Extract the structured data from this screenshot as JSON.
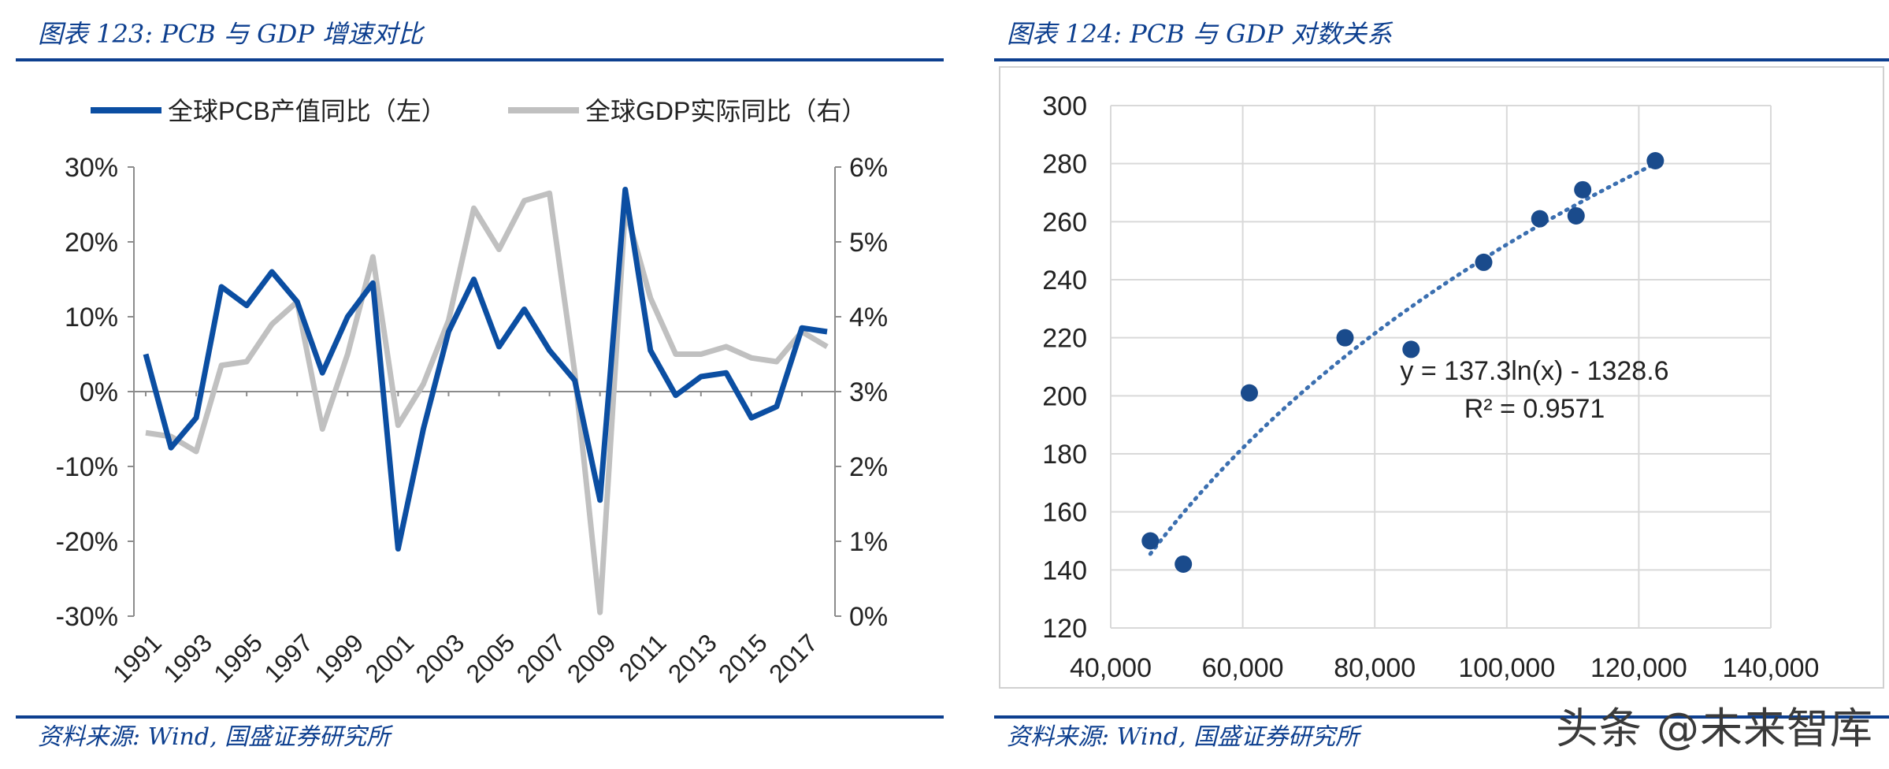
{
  "left": {
    "title": "图表 123:  PCB 与 GDP 增速对比",
    "source": "资料来源:  Wind,  国盛证券研究所"
  },
  "right": {
    "title": "图表 124:  PCB 与 GDP 对数关系",
    "source": "资料来源:  Wind,  国盛证券研究所"
  },
  "watermark": "头条 @未来智库",
  "colors": {
    "brand": "#0d3f8f",
    "pcb": "#0b4ea2",
    "gdp": "#c0c0c0",
    "scatter": "#1a4b8c"
  },
  "chart_data": [
    {
      "type": "line",
      "title": "PCB 与 GDP 增速对比",
      "legend": [
        "全球PCB产值同比（左）",
        "全球GDP实际同比（右）"
      ],
      "legend_position": "top",
      "x": [
        1991,
        1992,
        1993,
        1994,
        1995,
        1996,
        1997,
        1998,
        1999,
        2000,
        2001,
        2002,
        2003,
        2004,
        2005,
        2006,
        2007,
        2008,
        2009,
        2010,
        2011,
        2012,
        2013,
        2014,
        2015,
        2016,
        2017,
        2018
      ],
      "x_tick_labels": [
        "1991",
        "1993",
        "1995",
        "1997",
        "1999",
        "2001",
        "2003",
        "2005",
        "2007",
        "2009",
        "2011",
        "2013",
        "2015",
        "2017"
      ],
      "y_left": {
        "range": [
          -30,
          30
        ],
        "ticks": [
          "30%",
          "20%",
          "10%",
          "0%",
          "-10%",
          "-20%",
          "-30%"
        ],
        "tick_values": [
          30,
          20,
          10,
          0,
          -10,
          -20,
          -30
        ]
      },
      "y_right": {
        "range": [
          0,
          6
        ],
        "ticks": [
          "6%",
          "5%",
          "4%",
          "3%",
          "2%",
          "1%",
          "0%"
        ],
        "tick_values": [
          6,
          5,
          4,
          3,
          2,
          1,
          0
        ]
      },
      "series": [
        {
          "name": "全球PCB产值同比（左）",
          "axis": "left",
          "values": [
            5,
            -7.5,
            -3.5,
            14,
            11.5,
            16,
            12,
            2.5,
            10,
            14.5,
            -21,
            -5,
            8,
            15,
            6,
            11,
            5.5,
            1.5,
            -14.5,
            27,
            5.5,
            -0.5,
            2,
            2.5,
            -3.5,
            -2,
            8.5,
            8
          ]
        },
        {
          "name": "全球GDP实际同比（右）",
          "axis": "right",
          "values": [
            2.45,
            2.4,
            2.2,
            3.35,
            3.4,
            3.9,
            4.2,
            2.5,
            3.5,
            4.8,
            2.55,
            3.1,
            3.95,
            5.45,
            4.9,
            5.55,
            5.65,
            3.25,
            0.05,
            5.45,
            4.25,
            3.5,
            3.5,
            3.6,
            3.45,
            3.4,
            3.8,
            3.6
          ]
        }
      ]
    },
    {
      "type": "scatter",
      "title": "PCB 与 GDP 对数关系",
      "x_range": [
        40000,
        140000
      ],
      "y_range": [
        120,
        300
      ],
      "x_tick_labels": [
        "40,000",
        "60,000",
        "80,000",
        "100,000",
        "120,000",
        "140,000"
      ],
      "x_tick_values": [
        40000,
        60000,
        80000,
        100000,
        120000,
        140000
      ],
      "y_tick_labels": [
        "300",
        "280",
        "260",
        "240",
        "220",
        "200",
        "180",
        "160",
        "140",
        "120"
      ],
      "y_tick_values": [
        300,
        280,
        260,
        240,
        220,
        200,
        180,
        160,
        140,
        120
      ],
      "grid": true,
      "points": [
        {
          "x": 46000,
          "y": 150
        },
        {
          "x": 51000,
          "y": 142
        },
        {
          "x": 61000,
          "y": 201
        },
        {
          "x": 75500,
          "y": 220
        },
        {
          "x": 85500,
          "y": 216
        },
        {
          "x": 96500,
          "y": 246
        },
        {
          "x": 105000,
          "y": 261
        },
        {
          "x": 110500,
          "y": 262
        },
        {
          "x": 111500,
          "y": 271
        },
        {
          "x": 122500,
          "y": 281
        }
      ],
      "trendline": {
        "type": "log",
        "a": 137.3,
        "b": -1328.6,
        "x_from": 46000,
        "x_to": 122500
      },
      "annotations": [
        "y = 137.3ln(x) - 1328.6",
        "R² = 0.9571"
      ]
    }
  ]
}
